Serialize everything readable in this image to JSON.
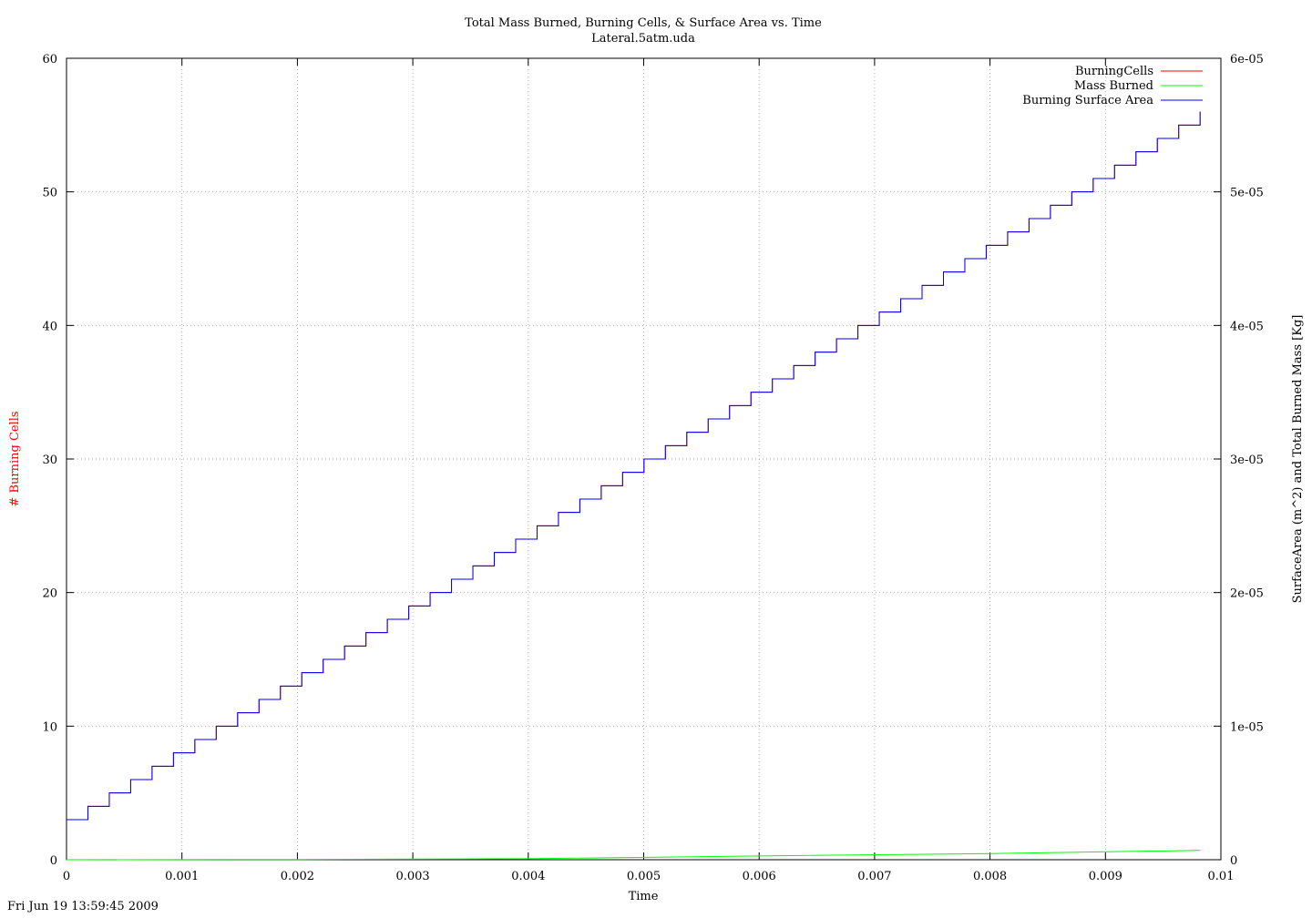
{
  "chart_data": {
    "type": "line",
    "title": "Total Mass Burned, Burning Cells, & Surface Area vs. Time",
    "subtitle": "Lateral.5atm.uda",
    "xlabel": "Time",
    "ylabel_left": "# Burning Cells",
    "ylabel_right": "SurfaceArea (m^2) and Total Burned Mass [Kg]",
    "xlim": [
      0,
      0.01
    ],
    "ylim_left": [
      0,
      60
    ],
    "ylim_right": [
      0,
      6e-05
    ],
    "grid": true,
    "legend_position": "top-right",
    "x_ticks": [
      "0",
      "0.001",
      "0.002",
      "0.003",
      "0.004",
      "0.005",
      "0.006",
      "0.007",
      "0.008",
      "0.009",
      "0.01"
    ],
    "y_ticks_left": [
      "0",
      "10",
      "20",
      "30",
      "40",
      "50",
      "60"
    ],
    "y_ticks_right": [
      "0",
      "1e-05",
      "2e-05",
      "3e-05",
      "4e-05",
      "5e-05",
      "6e-05"
    ],
    "step_start_time": 0,
    "step_end_time": 0.00982,
    "step_start_value": 3,
    "step_end_value": 56,
    "series": [
      {
        "name": "BurningCells",
        "color": "#ff0000",
        "axis": "left",
        "style": "step"
      },
      {
        "name": "Mass Burned",
        "color": "#00ff00",
        "axis": "right",
        "style": "curve",
        "x": [
          0,
          0.002,
          0.004,
          0.006,
          0.008,
          0.00982
        ],
        "values": [
          0,
          2e-08,
          8e-08,
          2.8e-07,
          4.6e-07,
          7e-07
        ]
      },
      {
        "name": "Burning Surface Area",
        "color": "#0000ff",
        "axis": "right",
        "style": "step"
      }
    ]
  },
  "footer": {
    "timestamp": "Fri Jun 19 13:59:45 2009"
  }
}
